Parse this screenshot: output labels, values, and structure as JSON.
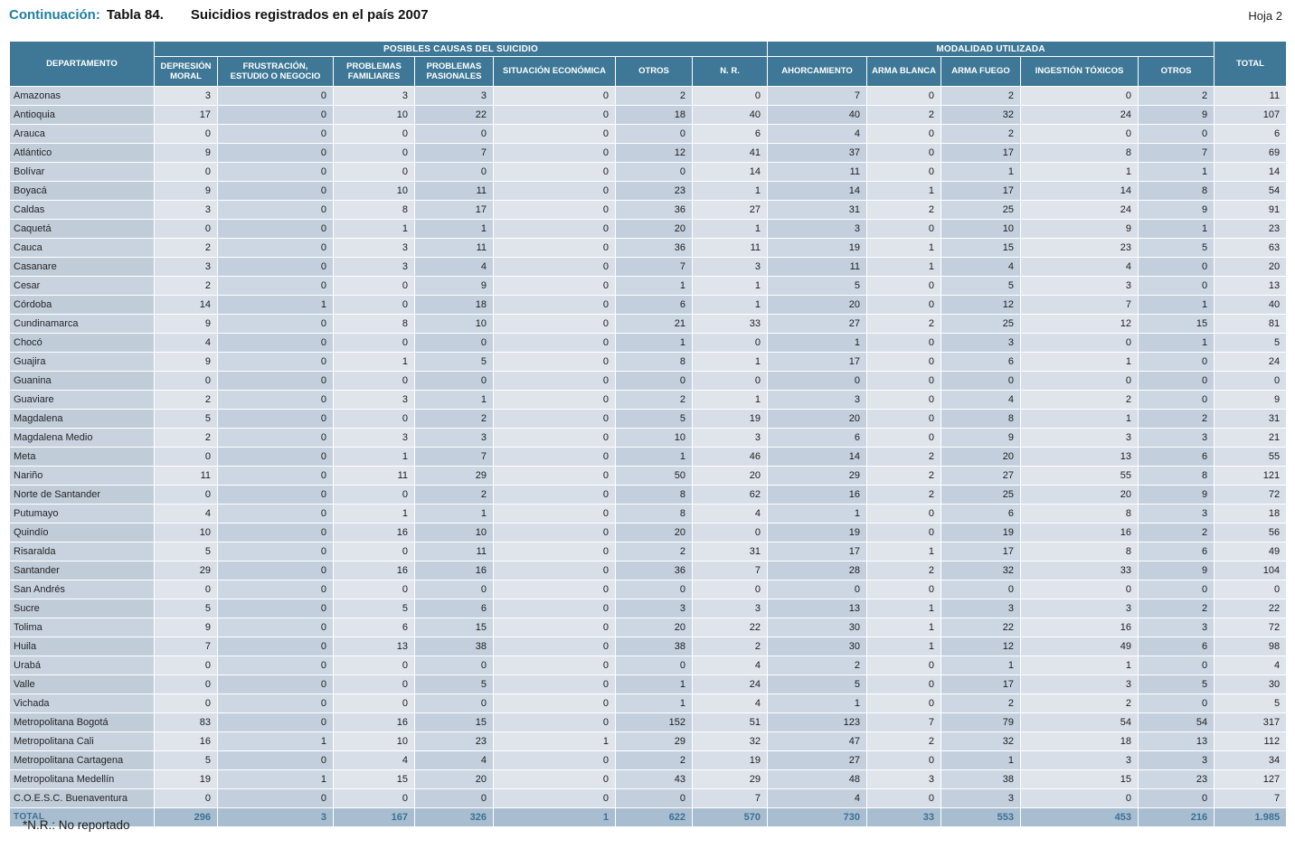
{
  "page": {
    "title_prefix": "Continuación:",
    "title_table": "Tabla 84.",
    "title_text": "Suicidios registrados en el país 2007",
    "sheet": "Hoja 2",
    "footnote": "*N.R.: No reportado"
  },
  "colors": {
    "header_bg": "#3e7896",
    "accent_teal": "#1e7ea1",
    "total_row_bg": "#a8bdcf",
    "total_row_text": "#3c7195",
    "cell_light": "#e0e5ec",
    "cell_dark": "#ccd7e3"
  },
  "table": {
    "group_headers": [
      {
        "label": "POSIBLES CAUSAS DEL SUICIDIO",
        "span": 7
      },
      {
        "label": "MODALIDAD UTILIZADA",
        "span": 5
      }
    ],
    "columns": [
      "DEPARTAMENTO",
      "DEPRESIÓN\nMORAL",
      "FRUSTRACIÓN,\nESTUDIO O NEGOCIO",
      "PROBLEMAS\nFAMILIARES",
      "PROBLEMAS\nPASIONALES",
      "SITUACIÓN ECONÓMICA",
      "OTROS",
      "N. R.",
      "AHORCAMIENTO",
      "ARMA BLANCA",
      "ARMA FUEGO",
      "INGESTIÓN  TÓXICOS",
      "OTROS",
      "TOTAL"
    ],
    "rows": [
      {
        "name": "Amazonas",
        "values": [
          3,
          0,
          3,
          3,
          0,
          2,
          0,
          7,
          0,
          2,
          0,
          2,
          11
        ]
      },
      {
        "name": "Antioquia",
        "values": [
          17,
          0,
          10,
          22,
          0,
          18,
          40,
          40,
          2,
          32,
          24,
          9,
          107
        ]
      },
      {
        "name": "Arauca",
        "values": [
          0,
          0,
          0,
          0,
          0,
          0,
          6,
          4,
          0,
          2,
          0,
          0,
          6
        ]
      },
      {
        "name": "Atlántico",
        "values": [
          9,
          0,
          0,
          7,
          0,
          12,
          41,
          37,
          0,
          17,
          8,
          7,
          69
        ]
      },
      {
        "name": "Bolívar",
        "values": [
          0,
          0,
          0,
          0,
          0,
          0,
          14,
          11,
          0,
          1,
          1,
          1,
          14
        ]
      },
      {
        "name": "Boyacá",
        "values": [
          9,
          0,
          10,
          11,
          0,
          23,
          1,
          14,
          1,
          17,
          14,
          8,
          54
        ]
      },
      {
        "name": "Caldas",
        "values": [
          3,
          0,
          8,
          17,
          0,
          36,
          27,
          31,
          2,
          25,
          24,
          9,
          91
        ]
      },
      {
        "name": "Caquetá",
        "values": [
          0,
          0,
          1,
          1,
          0,
          20,
          1,
          3,
          0,
          10,
          9,
          1,
          23
        ]
      },
      {
        "name": "Cauca",
        "values": [
          2,
          0,
          3,
          11,
          0,
          36,
          11,
          19,
          1,
          15,
          23,
          5,
          63
        ]
      },
      {
        "name": "Casanare",
        "values": [
          3,
          0,
          3,
          4,
          0,
          7,
          3,
          11,
          1,
          4,
          4,
          0,
          20
        ]
      },
      {
        "name": "Cesar",
        "values": [
          2,
          0,
          0,
          9,
          0,
          1,
          1,
          5,
          0,
          5,
          3,
          0,
          13
        ]
      },
      {
        "name": "Córdoba",
        "values": [
          14,
          1,
          0,
          18,
          0,
          6,
          1,
          20,
          0,
          12,
          7,
          1,
          40
        ]
      },
      {
        "name": "Cundinamarca",
        "values": [
          9,
          0,
          8,
          10,
          0,
          21,
          33,
          27,
          2,
          25,
          12,
          15,
          81
        ]
      },
      {
        "name": "Chocó",
        "values": [
          4,
          0,
          0,
          0,
          0,
          1,
          0,
          1,
          0,
          3,
          0,
          1,
          5
        ]
      },
      {
        "name": "Guajira",
        "values": [
          9,
          0,
          1,
          5,
          0,
          8,
          1,
          17,
          0,
          6,
          1,
          0,
          24
        ]
      },
      {
        "name": "Guanina",
        "values": [
          0,
          0,
          0,
          0,
          0,
          0,
          0,
          0,
          0,
          0,
          0,
          0,
          0
        ]
      },
      {
        "name": "Guaviare",
        "values": [
          2,
          0,
          3,
          1,
          0,
          2,
          1,
          3,
          0,
          4,
          2,
          0,
          9
        ]
      },
      {
        "name": "Magdalena",
        "values": [
          5,
          0,
          0,
          2,
          0,
          5,
          19,
          20,
          0,
          8,
          1,
          2,
          31
        ]
      },
      {
        "name": "Magdalena Medio",
        "values": [
          2,
          0,
          3,
          3,
          0,
          10,
          3,
          6,
          0,
          9,
          3,
          3,
          21
        ]
      },
      {
        "name": "Meta",
        "values": [
          0,
          0,
          1,
          7,
          0,
          1,
          46,
          14,
          2,
          20,
          13,
          6,
          55
        ]
      },
      {
        "name": "Nariño",
        "values": [
          11,
          0,
          11,
          29,
          0,
          50,
          20,
          29,
          2,
          27,
          55,
          8,
          121
        ]
      },
      {
        "name": "Norte de Santander",
        "values": [
          0,
          0,
          0,
          2,
          0,
          8,
          62,
          16,
          2,
          25,
          20,
          9,
          72
        ]
      },
      {
        "name": "Putumayo",
        "values": [
          4,
          0,
          1,
          1,
          0,
          8,
          4,
          1,
          0,
          6,
          8,
          3,
          18
        ]
      },
      {
        "name": "Quindío",
        "values": [
          10,
          0,
          16,
          10,
          0,
          20,
          0,
          19,
          0,
          19,
          16,
          2,
          56
        ]
      },
      {
        "name": "Risaralda",
        "values": [
          5,
          0,
          0,
          11,
          0,
          2,
          31,
          17,
          1,
          17,
          8,
          6,
          49
        ]
      },
      {
        "name": "Santander",
        "values": [
          29,
          0,
          16,
          16,
          0,
          36,
          7,
          28,
          2,
          32,
          33,
          9,
          104
        ]
      },
      {
        "name": "San Andrés",
        "values": [
          0,
          0,
          0,
          0,
          0,
          0,
          0,
          0,
          0,
          0,
          0,
          0,
          0
        ]
      },
      {
        "name": "Sucre",
        "values": [
          5,
          0,
          5,
          6,
          0,
          3,
          3,
          13,
          1,
          3,
          3,
          2,
          22
        ]
      },
      {
        "name": "Tolima",
        "values": [
          9,
          0,
          6,
          15,
          0,
          20,
          22,
          30,
          1,
          22,
          16,
          3,
          72
        ]
      },
      {
        "name": "Huila",
        "values": [
          7,
          0,
          13,
          38,
          0,
          38,
          2,
          30,
          1,
          12,
          49,
          6,
          98
        ]
      },
      {
        "name": "Urabá",
        "values": [
          0,
          0,
          0,
          0,
          0,
          0,
          4,
          2,
          0,
          1,
          1,
          0,
          4
        ]
      },
      {
        "name": "Valle",
        "values": [
          0,
          0,
          0,
          5,
          0,
          1,
          24,
          5,
          0,
          17,
          3,
          5,
          30
        ]
      },
      {
        "name": "Vichada",
        "values": [
          0,
          0,
          0,
          0,
          0,
          1,
          4,
          1,
          0,
          2,
          2,
          0,
          5
        ]
      },
      {
        "name": "Metropolitana Bogotá",
        "values": [
          83,
          0,
          16,
          15,
          0,
          152,
          51,
          123,
          7,
          79,
          54,
          54,
          317
        ]
      },
      {
        "name": "Metropolitana Cali",
        "values": [
          16,
          1,
          10,
          23,
          1,
          29,
          32,
          47,
          2,
          32,
          18,
          13,
          112
        ]
      },
      {
        "name": "Metropolitana Cartagena",
        "values": [
          5,
          0,
          4,
          4,
          0,
          2,
          19,
          27,
          0,
          1,
          3,
          3,
          34
        ]
      },
      {
        "name": "Metropolitana Medellín",
        "values": [
          19,
          1,
          15,
          20,
          0,
          43,
          29,
          48,
          3,
          38,
          15,
          23,
          127
        ]
      },
      {
        "name": "C.O.E.S.C. Buenaventura",
        "values": [
          0,
          0,
          0,
          0,
          0,
          0,
          7,
          4,
          0,
          3,
          0,
          0,
          7
        ]
      }
    ],
    "total_row": {
      "name": "TOTAL",
      "values": [
        "296",
        "3",
        "167",
        "326",
        "1",
        "622",
        "570",
        "730",
        "33",
        "553",
        "453",
        "216",
        "1.985"
      ]
    }
  }
}
